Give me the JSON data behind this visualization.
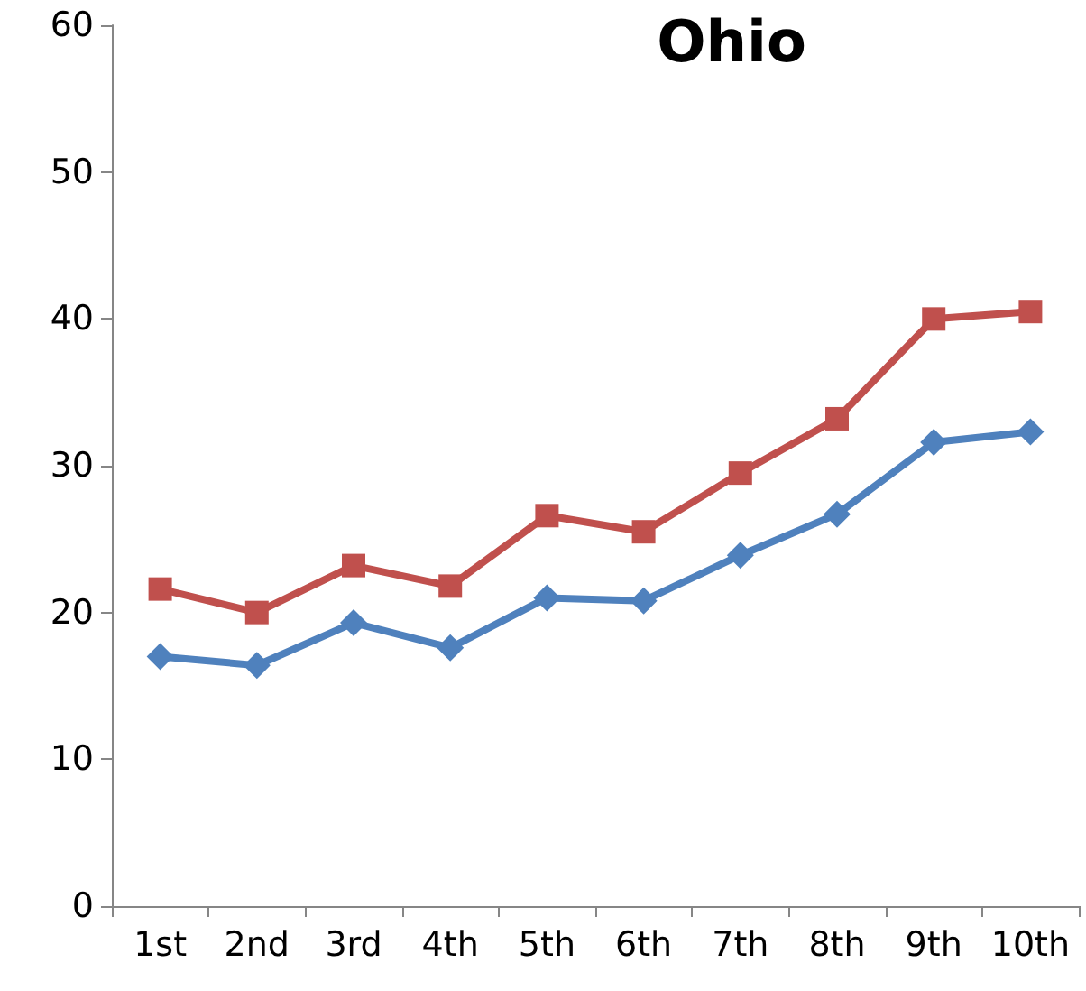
{
  "chart_data": {
    "type": "line",
    "title": "Ohio",
    "categories": [
      "1st",
      "2nd",
      "3rd",
      "4th",
      "5th",
      "6th",
      "7th",
      "8th",
      "9th",
      "10th"
    ],
    "series": [
      {
        "color": "#c0504d",
        "marker": "square",
        "values": [
          21.6,
          20.0,
          23.2,
          21.8,
          26.6,
          25.5,
          29.5,
          33.2,
          40.0,
          40.5
        ]
      },
      {
        "color": "#4f81bd",
        "marker": "diamond",
        "values": [
          17.0,
          16.4,
          19.3,
          17.6,
          21.0,
          20.8,
          23.9,
          26.7,
          31.6,
          32.3
        ]
      }
    ],
    "ylim": [
      0,
      60
    ],
    "yticks": [
      0,
      10,
      20,
      30,
      40,
      50,
      60
    ],
    "grid": false,
    "line_style": "solid"
  }
}
